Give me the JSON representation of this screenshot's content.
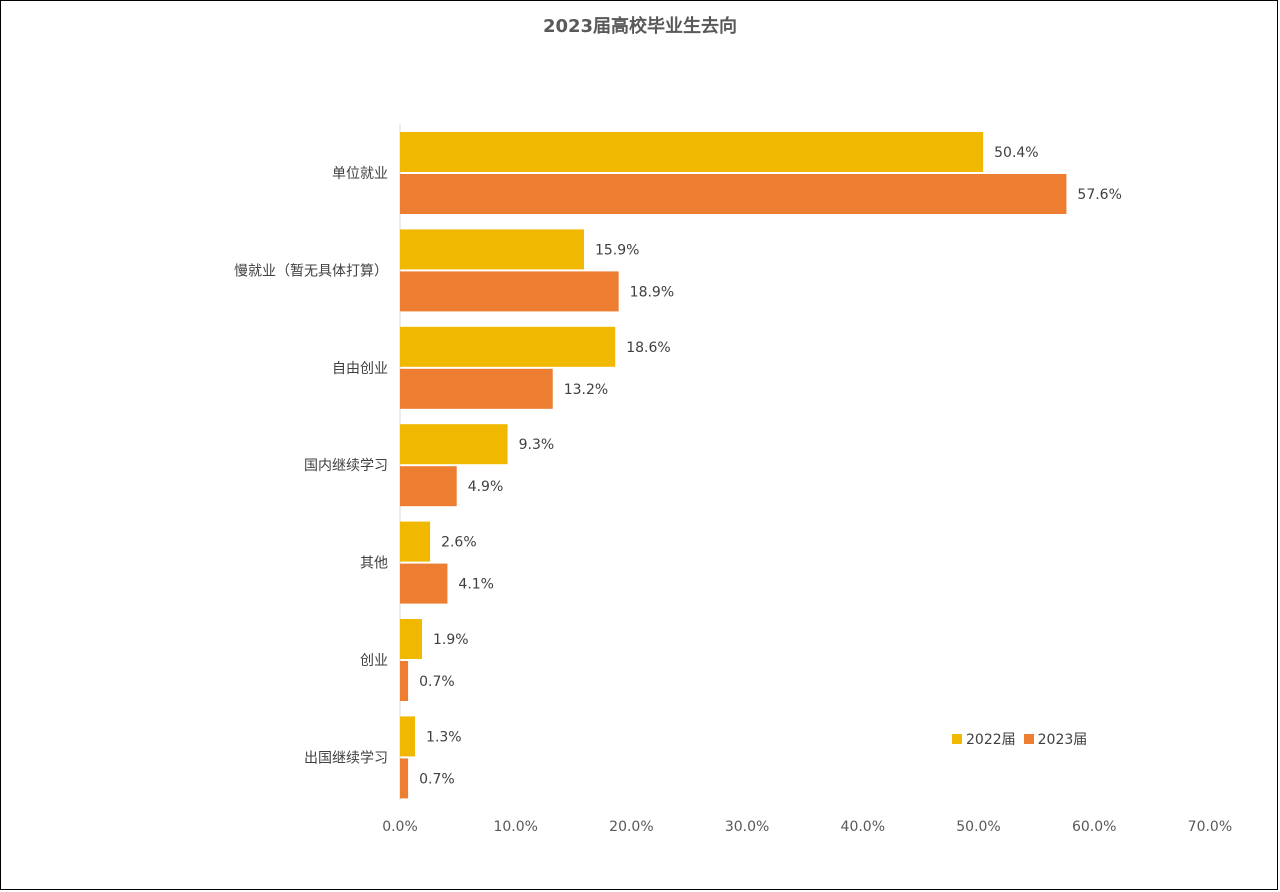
{
  "chart_data": {
    "type": "bar",
    "orientation": "horizontal",
    "title": "2023届高校毕业生去向",
    "categories": [
      "单位就业",
      "慢就业（暂无具体打算）",
      "自由创业",
      "国内继续学习",
      "其他",
      "创业",
      "出国继续学习"
    ],
    "series": [
      {
        "name": "2022届",
        "color": "#F0B800",
        "values": [
          50.4,
          15.9,
          18.6,
          9.3,
          2.6,
          1.9,
          1.3
        ]
      },
      {
        "name": "2023届",
        "color": "#ED7D31",
        "values": [
          57.6,
          18.9,
          13.2,
          4.9,
          4.1,
          0.7,
          0.7
        ]
      }
    ],
    "data_labels": [
      [
        "50.4%",
        "15.9%",
        "18.6%",
        "9.3%",
        "2.6%",
        "1.9%",
        "1.3%"
      ],
      [
        "57.6%",
        "18.9%",
        "13.2%",
        "4.9%",
        "4.1%",
        "0.7%",
        "0.7%"
      ]
    ],
    "xlim": [
      0,
      70
    ],
    "x_ticks": [
      0,
      10,
      20,
      30,
      40,
      50,
      60,
      70
    ],
    "x_tick_labels": [
      "0.0%",
      "10.0%",
      "20.0%",
      "30.0%",
      "40.0%",
      "50.0%",
      "60.0%",
      "70.0%"
    ],
    "xlabel": "",
    "ylabel": "",
    "grid": false,
    "legend_position": "bottom-right"
  }
}
